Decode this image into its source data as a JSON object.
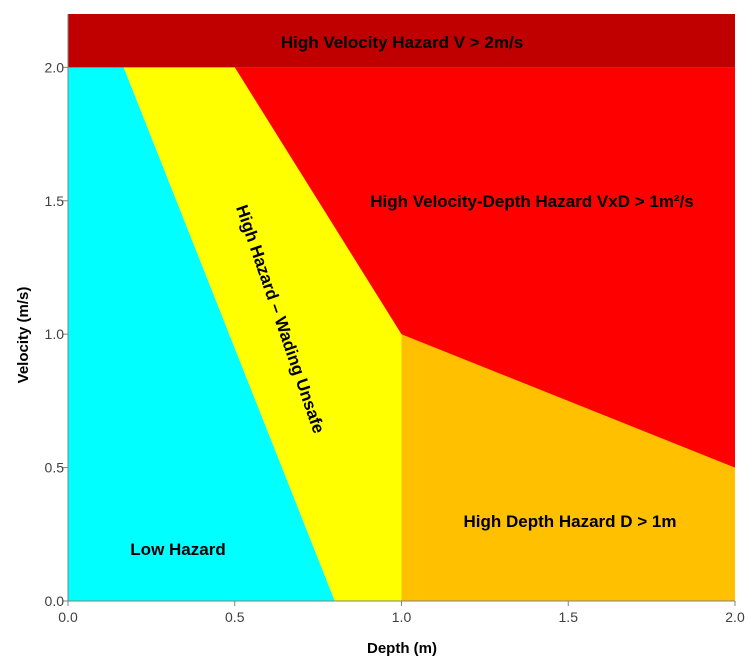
{
  "chart_data": {
    "type": "area",
    "xlabel": "Depth (m)",
    "ylabel": "Velocity (m/s)",
    "xlim": [
      0,
      2
    ],
    "ylim": [
      0,
      2.2
    ],
    "x_ticks": [
      "0.0",
      "0.5",
      "1.0",
      "1.5",
      "2.0"
    ],
    "y_ticks": [
      "0.0",
      "0.5",
      "1.0",
      "1.5",
      "2.0"
    ],
    "grid": false,
    "legend": "none",
    "zones": [
      {
        "label": "Low Hazard",
        "color": "#00FFFF",
        "polygon": [
          [
            0,
            0
          ],
          [
            0.8,
            0
          ],
          [
            0.167,
            2.0
          ],
          [
            0,
            2.0
          ]
        ]
      },
      {
        "label": "High Hazard – Wading Unsafe",
        "color": "#FFFF00",
        "polygon": [
          [
            0.8,
            0
          ],
          [
            1.1,
            0
          ],
          [
            1.0,
            1.0
          ],
          [
            0.5,
            2.0
          ],
          [
            0.167,
            2.0
          ]
        ]
      },
      {
        "label": "High Depth Hazard D > 1m",
        "color": "#FFC000",
        "polygon": [
          [
            1.0,
            0
          ],
          [
            2.0,
            0
          ],
          [
            2.0,
            0.5
          ],
          [
            1.0,
            1.0
          ]
        ]
      },
      {
        "label": "High Velocity-Depth Hazard VxD > 1m²/s",
        "color": "#FF0000",
        "boundary": "V = 1/D for 0.5 ≤ D ≤ 2.0"
      },
      {
        "label": "High Velocity Hazard V > 2m/s",
        "color": "#C00000",
        "polygon": [
          [
            0,
            2.0
          ],
          [
            2.0,
            2.0
          ],
          [
            2.0,
            2.2
          ],
          [
            0,
            2.2
          ]
        ]
      }
    ]
  }
}
